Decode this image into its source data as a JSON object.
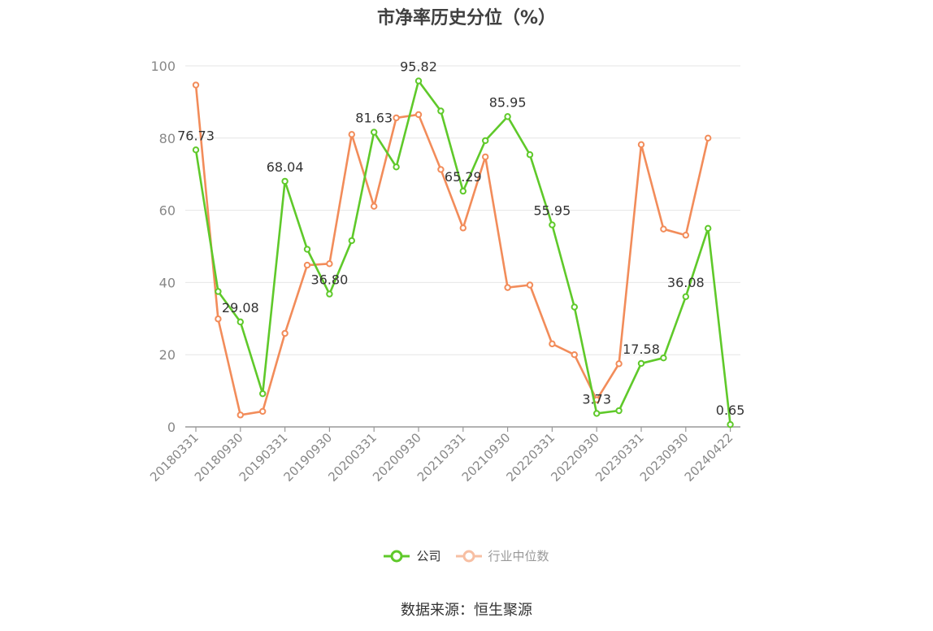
{
  "chart_data": {
    "type": "line",
    "title": "市净率历史分位（%）",
    "ylim": [
      0,
      100
    ],
    "yticks": [
      0,
      20,
      40,
      60,
      80,
      100
    ],
    "grid": true,
    "legend_position": "bottom",
    "x_tick_labels": [
      "20180331",
      "20180930",
      "20190331",
      "20190930",
      "20200331",
      "20200930",
      "20210331",
      "20210930",
      "20220331",
      "20220930",
      "20230331",
      "20230930",
      "20240422"
    ],
    "x": [
      "20180331",
      "20180630",
      "20180930",
      "20181231",
      "20190331",
      "20190630",
      "20190930",
      "20191231",
      "20200331",
      "20200630",
      "20200930",
      "20201231",
      "20210331",
      "20210630",
      "20210930",
      "20211231",
      "20220331",
      "20220630",
      "20220930",
      "20221231",
      "20230331",
      "20230630",
      "20230930",
      "20231231",
      "20240422"
    ],
    "series": [
      {
        "name": "公司",
        "color": "#5fc92a",
        "values": [
          76.73,
          37.5,
          29.08,
          9.2,
          68.04,
          49.2,
          36.8,
          51.6,
          81.63,
          72.0,
          95.82,
          87.5,
          65.29,
          79.3,
          85.95,
          75.4,
          55.95,
          33.2,
          3.73,
          4.5,
          17.58,
          19.1,
          36.08,
          55.0,
          0.65
        ],
        "labels": [
          "76.73",
          null,
          "29.08",
          null,
          "68.04",
          null,
          "36.80",
          null,
          "81.63",
          null,
          "95.82",
          null,
          "65.29",
          null,
          "85.95",
          null,
          "55.95",
          null,
          "3.73",
          null,
          "17.58",
          null,
          "36.08",
          null,
          "0.65"
        ]
      },
      {
        "name": "行业中位数",
        "color": "#f28c5a",
        "values": [
          94.7,
          29.9,
          3.3,
          4.3,
          25.9,
          44.8,
          45.2,
          81.0,
          61.1,
          85.6,
          86.5,
          71.3,
          55.1,
          74.8,
          38.6,
          39.3,
          23.0,
          20.0,
          7.5,
          17.5,
          78.2,
          54.8,
          53.1,
          80.0,
          null
        ]
      }
    ]
  },
  "source": "数据来源：恒生聚源"
}
